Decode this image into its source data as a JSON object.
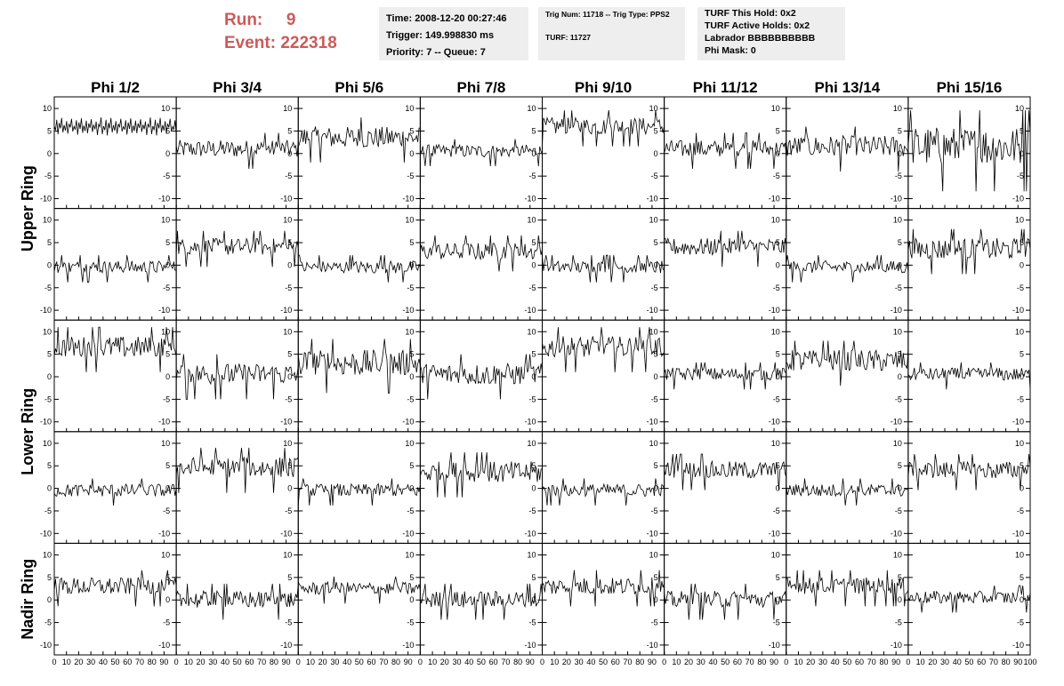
{
  "header": {
    "run_label": "Run:",
    "run_value": "9",
    "event_label": "Event:",
    "event_value": "222318",
    "colors": {
      "run_text": "#cc5a5a",
      "panel_bg": "#eeeeee"
    }
  },
  "info_panels": {
    "time_panel": {
      "lines": [
        "Time: 2008-12-20 00:27:46",
        "Trigger: 149.998830 ms",
        "Priority: 7 -- Queue: 7"
      ]
    },
    "trig_panel": {
      "line1": "Trig Num: 11718 -- Trig Type: PPS2",
      "line2": "TURF: 11727"
    },
    "turf_panel": {
      "lines": [
        "TURF This Hold: 0x2",
        "TURF Active Holds: 0x2",
        "Labrador BBBBBBBBBB",
        "Phi Mask: 0"
      ]
    }
  },
  "chart_data": {
    "type": "line",
    "layout": "grid 5 rows x 8 columns",
    "columns": [
      "Phi 1/2",
      "Phi 3/4",
      "Phi 5/6",
      "Phi 7/8",
      "Phi 9/10",
      "Phi 11/12",
      "Phi 13/14",
      "Phi 15/16"
    ],
    "rows": [
      "Upper Ring",
      "Upper Ring",
      "Lower Ring",
      "Lower Ring",
      "Nadir Ring"
    ],
    "row_labels": [
      {
        "text": "Upper Ring",
        "rows": [
          0,
          1
        ]
      },
      {
        "text": "Lower Ring",
        "rows": [
          2,
          3
        ]
      },
      {
        "text": "Nadir Ring",
        "rows": [
          4,
          4
        ]
      }
    ],
    "xlim": [
      0,
      100
    ],
    "ylim": [
      -11,
      11
    ],
    "x_ticks": [
      0,
      10,
      20,
      30,
      40,
      50,
      60,
      70,
      80,
      90,
      100
    ],
    "y_ticks": [
      -10,
      -5,
      0,
      5,
      10
    ],
    "samples_per_trace": 100,
    "trace_ranges": [
      [
        [
          4,
          8
        ],
        [
          -1,
          3
        ],
        [
          1,
          6
        ],
        [
          -1,
          2
        ],
        [
          4,
          8
        ],
        [
          -1,
          3
        ],
        [
          -1,
          4
        ],
        [
          -3,
          6
        ]
      ],
      [
        [
          -2,
          1
        ],
        [
          2,
          6
        ],
        [
          -2,
          1
        ],
        [
          1,
          5
        ],
        [
          -2,
          1
        ],
        [
          2,
          6
        ],
        [
          -2,
          1
        ],
        [
          1,
          6
        ]
      ],
      [
        [
          4,
          9
        ],
        [
          -2,
          3
        ],
        [
          0,
          6
        ],
        [
          -2,
          3
        ],
        [
          4,
          9
        ],
        [
          -1,
          2
        ],
        [
          1,
          6
        ],
        [
          -1,
          2
        ]
      ],
      [
        [
          -2,
          1
        ],
        [
          2,
          7
        ],
        [
          -2,
          1
        ],
        [
          1,
          6
        ],
        [
          -2,
          1
        ],
        [
          2,
          6
        ],
        [
          -2,
          1
        ],
        [
          2,
          6
        ]
      ],
      [
        [
          1,
          5
        ],
        [
          -2,
          2
        ],
        [
          1,
          4
        ],
        [
          -2,
          2
        ],
        [
          1,
          5
        ],
        [
          -2,
          2
        ],
        [
          1,
          5
        ],
        [
          -1,
          2
        ]
      ]
    ],
    "series": [
      {
        "values": [
          6.1,
          5.2,
          7.5,
          4.3,
          6.8,
          5.6,
          7.9,
          4.7,
          6.3,
          5.1,
          7.2,
          4.4,
          6.6,
          5.8,
          7.7,
          4.9,
          6.0,
          5.3,
          7.4,
          4.2,
          6.9,
          5.5,
          7.8,
          4.6,
          6.2,
          5.0,
          7.3,
          4.5,
          6.7,
          5.7,
          7.6,
          4.8,
          6.4,
          5.4,
          7.1,
          4.1,
          6.5,
          5.9,
          8.0,
          4.3,
          6.1,
          5.2,
          7.5,
          4.0,
          6.8,
          5.6,
          7.9,
          4.7,
          6.3,
          5.1,
          7.2,
          4.4,
          6.6,
          5.8,
          7.7,
          4.9,
          6.0,
          5.3,
          7.4,
          4.2,
          6.9,
          5.5,
          7.8,
          4.6,
          6.2,
          5.0,
          7.3,
          4.5,
          6.7,
          5.7,
          7.6,
          4.8,
          6.4,
          5.4,
          7.1,
          4.1,
          6.5,
          5.9,
          8.0,
          4.3,
          6.1,
          5.2,
          7.5,
          4.0,
          6.8,
          5.6,
          7.9,
          4.7,
          6.3,
          5.1,
          7.2,
          4.4,
          6.6,
          5.8,
          7.7,
          4.9,
          6.0,
          5.3,
          7.4,
          4.2
        ]
      }
    ]
  }
}
